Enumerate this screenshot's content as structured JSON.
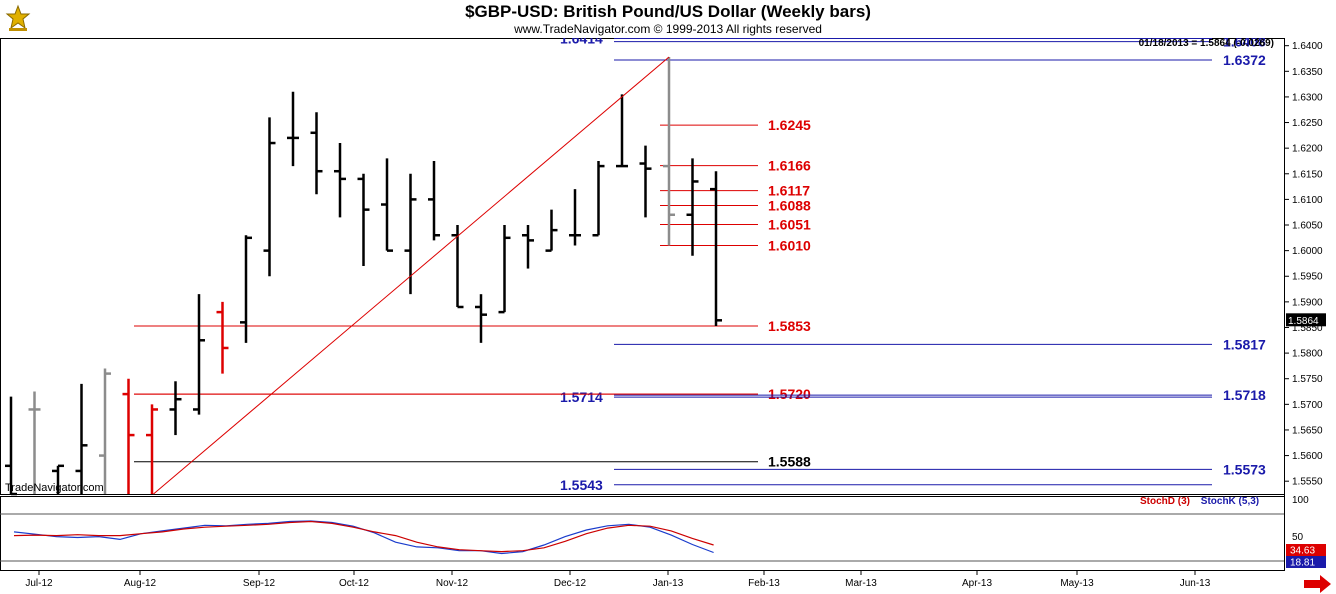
{
  "header": {
    "title": "$GBP-USD:  British Pound/US Dollar  (Weekly bars)",
    "subtitle": "www.TradeNavigator.com © 1999-2013 All rights reserved",
    "watermark": "TradeNavigator.com",
    "last_label": "01/18/2013 = 1.5864 (-0.0269)"
  },
  "colors": {
    "bar_black": "#000000",
    "bar_gray": "#8c8c8c",
    "bar_red": "#dd0000",
    "line_red": "#dd0000",
    "line_blue": "#1a1aaa",
    "stochD": "#cc0000",
    "stochK": "#1a3ccc"
  },
  "chart_data": {
    "type": "ohlc",
    "title": "$GBP-USD:  British Pound/US Dollar  (Weekly bars)",
    "ylim": [
      1.5525,
      1.6415
    ],
    "y_ticks": [
      "1.6400",
      "1.6350",
      "1.6300",
      "1.6250",
      "1.6200",
      "1.6150",
      "1.6100",
      "1.6050",
      "1.6000",
      "1.5950",
      "1.5900",
      "1.5850",
      "1.5800",
      "1.5750",
      "1.5700",
      "1.5650",
      "1.5600",
      "1.5550"
    ],
    "x_ticks": [
      "Jul-12",
      "Aug-12",
      "Sep-12",
      "Oct-12",
      "Nov-12",
      "Dec-12",
      "Jan-13",
      "Feb-13",
      "Mar-13",
      "Apr-13",
      "May-13",
      "Jun-13"
    ],
    "last_price": "1.5864",
    "bars": [
      {
        "o": 1.558,
        "h": 1.5715,
        "l": 1.5525,
        "c": 1.5525,
        "color": "black"
      },
      {
        "o": 1.569,
        "h": 1.5725,
        "l": 1.5525,
        "c": 1.569,
        "color": "gray"
      },
      {
        "o": 1.557,
        "h": 1.558,
        "l": 1.5525,
        "c": 1.558,
        "color": "black"
      },
      {
        "o": 1.557,
        "h": 1.574,
        "l": 1.5525,
        "c": 1.562,
        "color": "black"
      },
      {
        "o": 1.56,
        "h": 1.577,
        "l": 1.5525,
        "c": 1.576,
        "color": "gray"
      },
      {
        "o": 1.572,
        "h": 1.575,
        "l": 1.5525,
        "c": 1.564,
        "color": "red"
      },
      {
        "o": 1.564,
        "h": 1.57,
        "l": 1.5525,
        "c": 1.569,
        "color": "red"
      },
      {
        "o": 1.569,
        "h": 1.5745,
        "l": 1.564,
        "c": 1.571,
        "color": "black"
      },
      {
        "o": 1.569,
        "h": 1.5915,
        "l": 1.568,
        "c": 1.5825,
        "color": "black"
      },
      {
        "o": 1.588,
        "h": 1.59,
        "l": 1.576,
        "c": 1.581,
        "color": "red"
      },
      {
        "o": 1.586,
        "h": 1.603,
        "l": 1.582,
        "c": 1.6025,
        "color": "black"
      },
      {
        "o": 1.6,
        "h": 1.626,
        "l": 1.595,
        "c": 1.621,
        "color": "black"
      },
      {
        "o": 1.622,
        "h": 1.631,
        "l": 1.6165,
        "c": 1.622,
        "color": "black"
      },
      {
        "o": 1.623,
        "h": 1.627,
        "l": 1.611,
        "c": 1.6155,
        "color": "black"
      },
      {
        "o": 1.6155,
        "h": 1.621,
        "l": 1.6065,
        "c": 1.614,
        "color": "black"
      },
      {
        "o": 1.614,
        "h": 1.615,
        "l": 1.597,
        "c": 1.608,
        "color": "black"
      },
      {
        "o": 1.609,
        "h": 1.618,
        "l": 1.6,
        "c": 1.6,
        "color": "black"
      },
      {
        "o": 1.6,
        "h": 1.615,
        "l": 1.5915,
        "c": 1.61,
        "color": "black"
      },
      {
        "o": 1.61,
        "h": 1.6175,
        "l": 1.602,
        "c": 1.603,
        "color": "black"
      },
      {
        "o": 1.603,
        "h": 1.605,
        "l": 1.589,
        "c": 1.589,
        "color": "black"
      },
      {
        "o": 1.589,
        "h": 1.5915,
        "l": 1.582,
        "c": 1.5875,
        "color": "black"
      },
      {
        "o": 1.588,
        "h": 1.605,
        "l": 1.588,
        "c": 1.6025,
        "color": "black"
      },
      {
        "o": 1.603,
        "h": 1.605,
        "l": 1.5965,
        "c": 1.602,
        "color": "black"
      },
      {
        "o": 1.6,
        "h": 1.608,
        "l": 1.6,
        "c": 1.604,
        "color": "black"
      },
      {
        "o": 1.603,
        "h": 1.612,
        "l": 1.601,
        "c": 1.603,
        "color": "black"
      },
      {
        "o": 1.603,
        "h": 1.6175,
        "l": 1.603,
        "c": 1.6165,
        "color": "black"
      },
      {
        "o": 1.6165,
        "h": 1.6305,
        "l": 1.6165,
        "c": 1.6165,
        "color": "black"
      },
      {
        "o": 1.617,
        "h": 1.6205,
        "l": 1.6065,
        "c": 1.616,
        "color": "black"
      },
      {
        "o": 1.6165,
        "h": 1.6378,
        "l": 1.601,
        "c": 1.607,
        "color": "gray"
      },
      {
        "o": 1.607,
        "h": 1.618,
        "l": 1.599,
        "c": 1.6135,
        "color": "black"
      },
      {
        "o": 1.612,
        "h": 1.6155,
        "l": 1.5853,
        "c": 1.5864,
        "color": "black"
      }
    ],
    "levels_red": [
      {
        "value": 1.6245,
        "label": "1.6245"
      },
      {
        "value": 1.6166,
        "label": "1.6166"
      },
      {
        "value": 1.6117,
        "label": "1.6117"
      },
      {
        "value": 1.6088,
        "label": "1.6088"
      },
      {
        "value": 1.6051,
        "label": "1.6051"
      },
      {
        "value": 1.601,
        "label": "1.6010"
      },
      {
        "value": 1.5853,
        "label": "1.5853"
      },
      {
        "value": 1.572,
        "label": "1.5720"
      }
    ],
    "levels_blue": [
      {
        "value": 1.6408,
        "label": "1.6408"
      },
      {
        "value": 1.6372,
        "label": "1.6372"
      },
      {
        "value": 1.5817,
        "label": "1.5817"
      },
      {
        "value": 1.5718,
        "label": "1.5718"
      },
      {
        "value": 1.5573,
        "label": "1.5573"
      }
    ],
    "levels_blue_left": [
      {
        "value": 1.6414,
        "label": "1.6414"
      },
      {
        "value": 1.5714,
        "label": "1.5714"
      },
      {
        "value": 1.5543,
        "label": "1.5543"
      }
    ],
    "level_black": {
      "value": 1.5588,
      "label": "1.5588"
    },
    "trendline": {
      "from_bar": 7,
      "from_value": 1.5525,
      "to_bar": 28,
      "to_value": 1.6378
    },
    "stochastic": {
      "legend_d": "StochD (3)",
      "legend_k": "StochK (5,3)",
      "y_ticks": [
        "100",
        "50"
      ],
      "d_value": "34.63",
      "k_value": "18.81",
      "k": [
        62,
        57,
        52,
        50,
        52,
        46,
        58,
        64,
        70,
        76,
        75,
        78,
        80,
        84,
        85,
        82,
        74,
        60,
        40,
        30,
        28,
        22,
        22,
        16,
        20,
        34,
        52,
        66,
        75,
        78,
        72,
        55,
        35,
        18
      ],
      "d": [
        54,
        55,
        54,
        56,
        54,
        54,
        58,
        62,
        68,
        72,
        74,
        76,
        78,
        82,
        84,
        80,
        72,
        62,
        54,
        40,
        30,
        24,
        22,
        20,
        22,
        28,
        42,
        58,
        70,
        76,
        74,
        64,
        48,
        34
      ]
    }
  }
}
